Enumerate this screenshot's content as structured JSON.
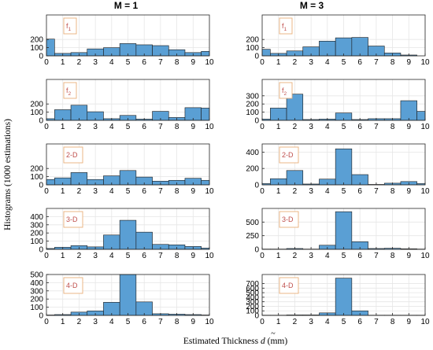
{
  "figure": {
    "ylabel": "Histograms (1000 estimations)",
    "xlabel": "Estimated Thickness",
    "xlabel_symbol": "d",
    "xlabel_unit": "(mm)"
  },
  "colors": {
    "bar_fill": "#5a9fd4",
    "bar_edge": "#1a1a1a",
    "grid": "#e6e6e6",
    "axis": "#262626",
    "label_text": "#c0504d",
    "label_box": "#e9b07a"
  },
  "chart_data": [
    {
      "type": "bar",
      "column_title": "M = 1",
      "label": "f1",
      "xlim": [
        0,
        10
      ],
      "ylim": [
        0,
        500
      ],
      "yticks": [
        0,
        100,
        200
      ],
      "xticks": [
        0,
        1,
        2,
        3,
        4,
        5,
        6,
        7,
        8,
        9,
        10
      ],
      "bin_edges": [
        0,
        0.5,
        1.5,
        2.5,
        3.5,
        4.5,
        5.5,
        6.5,
        7.5,
        8.5,
        9.5,
        10
      ],
      "values": [
        205,
        30,
        40,
        85,
        100,
        150,
        135,
        125,
        75,
        40,
        55
      ]
    },
    {
      "type": "bar",
      "column_title": "M = 3",
      "label": "f1",
      "xlim": [
        0,
        10
      ],
      "ylim": [
        0,
        500
      ],
      "yticks": [
        0,
        100,
        200
      ],
      "xticks": [
        0,
        1,
        2,
        3,
        4,
        5,
        6,
        7,
        8,
        9,
        10
      ],
      "bin_edges": [
        0,
        0.5,
        1.5,
        2.5,
        3.5,
        4.5,
        5.5,
        6.5,
        7.5,
        8.5,
        9.5,
        10
      ],
      "values": [
        80,
        30,
        60,
        110,
        180,
        220,
        225,
        120,
        35,
        10,
        0
      ]
    },
    {
      "type": "bar",
      "column_title": "M = 1",
      "label": "f2",
      "xlim": [
        0,
        10
      ],
      "ylim": [
        0,
        500
      ],
      "yticks": [
        0,
        100,
        200
      ],
      "xticks": [
        0,
        1,
        2,
        3,
        4,
        5,
        6,
        7,
        8,
        9,
        10
      ],
      "bin_edges": [
        0,
        0.5,
        1.5,
        2.5,
        3.5,
        4.5,
        5.5,
        6.5,
        7.5,
        8.5,
        9.5,
        10
      ],
      "values": [
        20,
        130,
        185,
        105,
        20,
        60,
        15,
        110,
        35,
        155,
        150
      ]
    },
    {
      "type": "bar",
      "column_title": "M = 3",
      "label": "f2",
      "xlim": [
        0,
        10
      ],
      "ylim": [
        0,
        500
      ],
      "yticks": [
        0,
        100,
        200,
        300
      ],
      "xticks": [
        0,
        1,
        2,
        3,
        4,
        5,
        6,
        7,
        8,
        9,
        10
      ],
      "bin_edges": [
        0,
        0.5,
        1.5,
        2.5,
        3.5,
        4.5,
        5.5,
        6.5,
        7.5,
        8.5,
        9.5,
        10
      ],
      "values": [
        15,
        150,
        320,
        10,
        15,
        90,
        10,
        20,
        20,
        240,
        110
      ]
    },
    {
      "type": "bar",
      "column_title": "M = 1",
      "label": "2-D",
      "xlim": [
        0,
        10
      ],
      "ylim": [
        0,
        500
      ],
      "yticks": [
        0,
        100,
        200
      ],
      "xticks": [
        0,
        1,
        2,
        3,
        4,
        5,
        6,
        7,
        8,
        9,
        10
      ],
      "bin_edges": [
        0,
        0.5,
        1.5,
        2.5,
        3.5,
        4.5,
        5.5,
        6.5,
        7.5,
        8.5,
        9.5,
        10
      ],
      "values": [
        65,
        85,
        150,
        65,
        110,
        175,
        95,
        45,
        55,
        80,
        55
      ]
    },
    {
      "type": "bar",
      "column_title": "M = 3",
      "label": "2-D",
      "xlim": [
        0,
        10
      ],
      "ylim": [
        0,
        500
      ],
      "yticks": [
        0,
        200,
        400
      ],
      "xticks": [
        0,
        1,
        2,
        3,
        4,
        5,
        6,
        7,
        8,
        9,
        10
      ],
      "bin_edges": [
        0,
        0.5,
        1.5,
        2.5,
        3.5,
        4.5,
        5.5,
        6.5,
        7.5,
        8.5,
        9.5,
        10
      ],
      "values": [
        15,
        75,
        175,
        10,
        70,
        440,
        125,
        5,
        20,
        40,
        15
      ]
    },
    {
      "type": "bar",
      "column_title": "M = 1",
      "label": "3-D",
      "xlim": [
        0,
        10
      ],
      "ylim": [
        0,
        500
      ],
      "yticks": [
        0,
        100,
        200,
        300,
        400
      ],
      "xticks": [
        0,
        1,
        2,
        3,
        4,
        5,
        6,
        7,
        8,
        9,
        10
      ],
      "bin_edges": [
        0,
        0.5,
        1.5,
        2.5,
        3.5,
        4.5,
        5.5,
        6.5,
        7.5,
        8.5,
        9.5,
        10
      ],
      "values": [
        10,
        25,
        45,
        30,
        175,
        355,
        210,
        60,
        55,
        35,
        15
      ]
    },
    {
      "type": "bar",
      "column_title": "M = 3",
      "label": "3-D",
      "xlim": [
        0,
        10
      ],
      "ylim": [
        0,
        750
      ],
      "yticks": [
        0,
        250,
        500
      ],
      "xticks": [
        0,
        1,
        2,
        3,
        4,
        5,
        6,
        7,
        8,
        9,
        10
      ],
      "bin_edges": [
        0,
        0.5,
        1.5,
        2.5,
        3.5,
        4.5,
        5.5,
        6.5,
        7.5,
        8.5,
        9.5,
        10
      ],
      "values": [
        5,
        5,
        15,
        5,
        75,
        690,
        140,
        15,
        20,
        10,
        5
      ]
    },
    {
      "type": "bar",
      "column_title": "M = 1",
      "label": "4-D",
      "xlim": [
        0,
        10
      ],
      "ylim": [
        0,
        500
      ],
      "yticks": [
        0,
        100,
        200,
        300,
        400,
        500
      ],
      "xticks": [
        0,
        1,
        2,
        3,
        4,
        5,
        6,
        7,
        8,
        9,
        10
      ],
      "bin_edges": [
        0,
        0.5,
        1.5,
        2.5,
        3.5,
        4.5,
        5.5,
        6.5,
        7.5,
        8.5,
        9.5,
        10
      ],
      "values": [
        5,
        10,
        40,
        55,
        160,
        500,
        165,
        20,
        15,
        10,
        5
      ]
    },
    {
      "type": "bar",
      "column_title": "M = 3",
      "label": "4-D",
      "xlim": [
        0,
        10
      ],
      "ylim": [
        0,
        900
      ],
      "yticks": [
        0,
        100,
        200,
        300,
        400,
        500,
        600,
        700
      ],
      "xticks": [
        0,
        1,
        2,
        3,
        4,
        5,
        6,
        7,
        8,
        9,
        10
      ],
      "bin_edges": [
        0,
        0.5,
        1.5,
        2.5,
        3.5,
        4.5,
        5.5,
        6.5,
        7.5,
        8.5,
        9.5,
        10
      ],
      "values": [
        5,
        5,
        10,
        10,
        55,
        820,
        100,
        5,
        5,
        5,
        5
      ]
    }
  ]
}
